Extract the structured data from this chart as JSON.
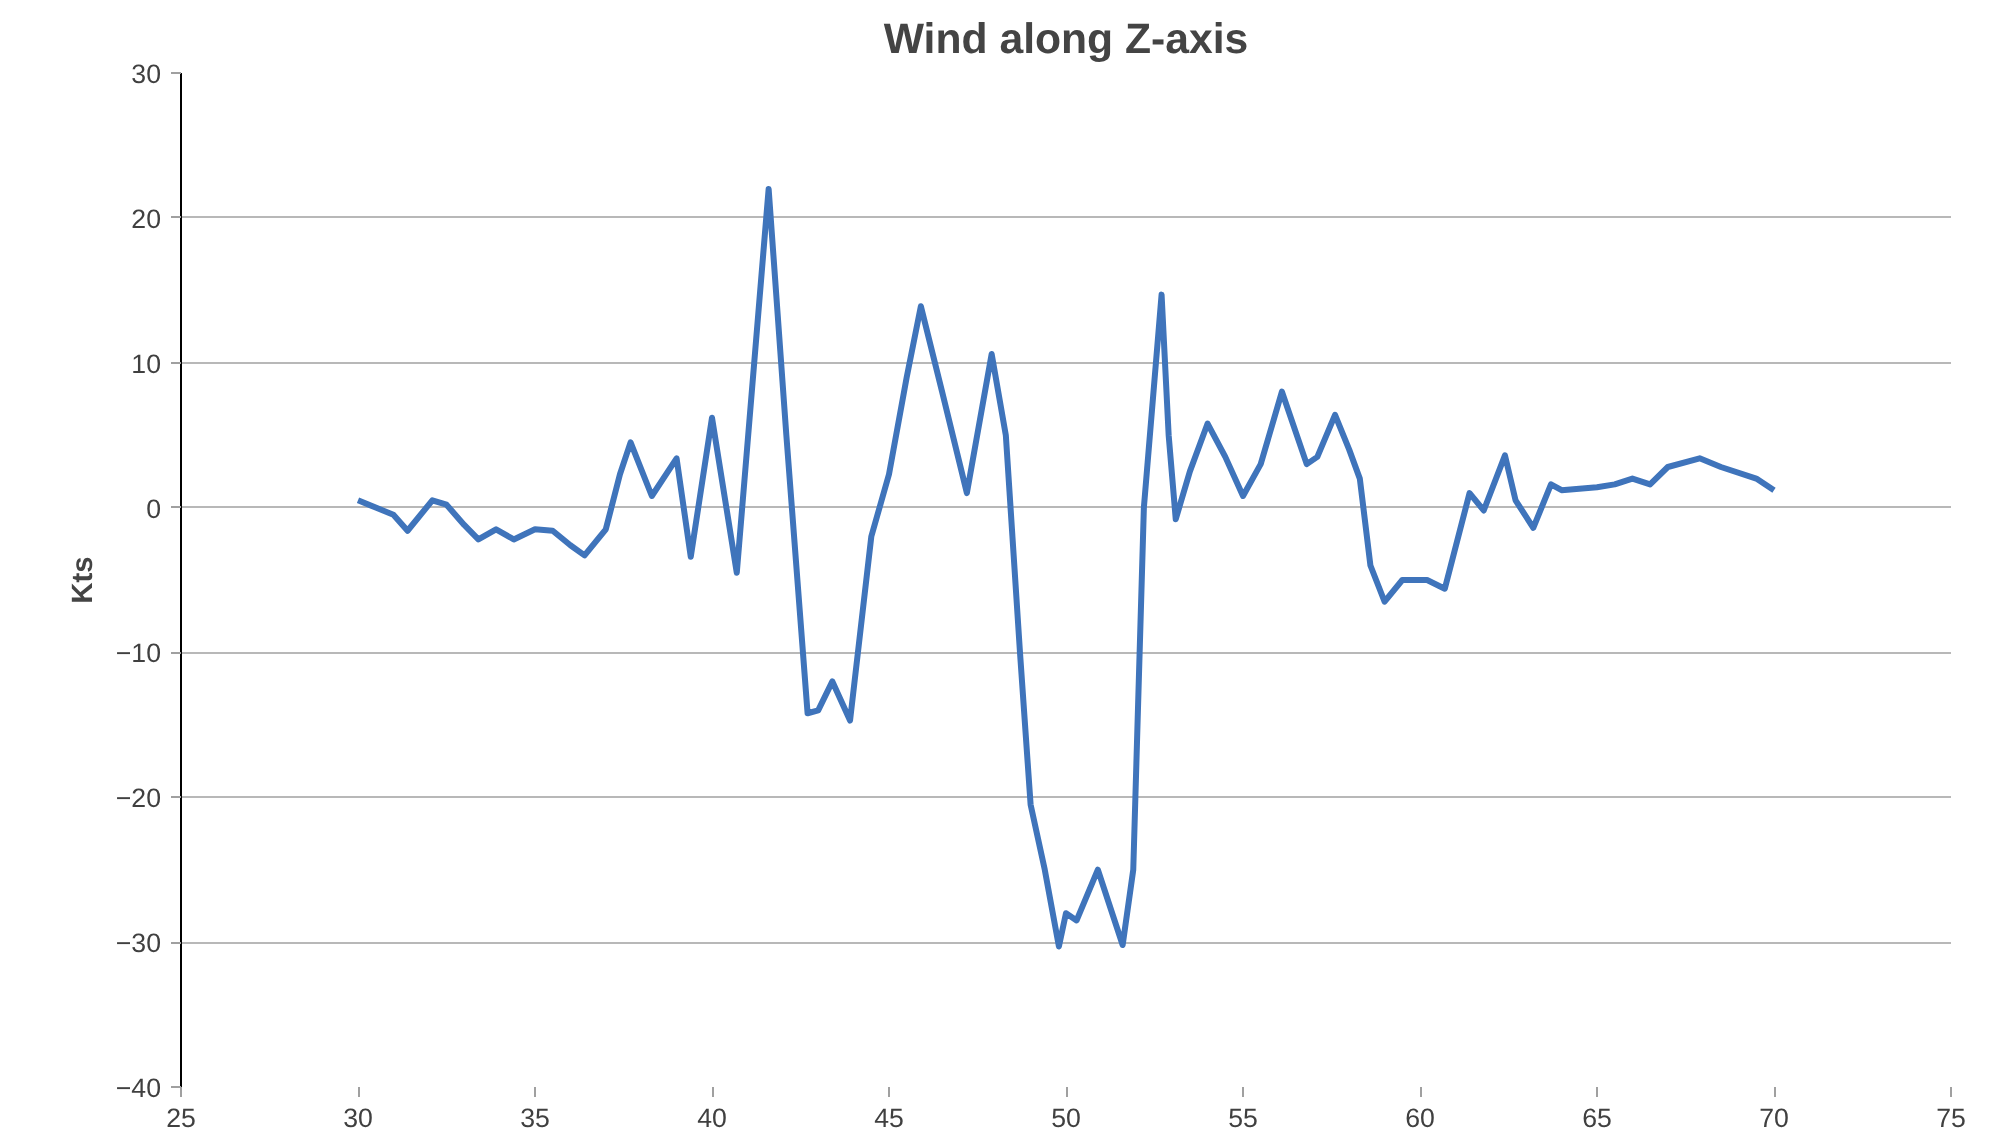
{
  "chart_data": {
    "type": "line",
    "title": "Wind along Z-axis",
    "ylabel": "Kts",
    "xlim": [
      25,
      75
    ],
    "xticks": [
      25,
      30,
      35,
      40,
      45,
      50,
      55,
      60,
      65,
      70,
      75
    ],
    "ylim": [
      -40,
      30
    ],
    "yticks": [
      -40,
      -30,
      -20,
      -10,
      0,
      10,
      20,
      30
    ],
    "grid": "y",
    "series": [
      {
        "color": "#3f74bb",
        "x": [
          30,
          30.5,
          31,
          31.4,
          32.1,
          32.5,
          33,
          33.4,
          33.9,
          34.4,
          35,
          35.5,
          36,
          36.4,
          37,
          37.4,
          37.7,
          38.3,
          39,
          39.4,
          40,
          40.7,
          41.6,
          42.1,
          42.7,
          43,
          43.4,
          43.9,
          44.5,
          45,
          45.5,
          45.9,
          46.5,
          47.2,
          47.9,
          48.3,
          48.7,
          49,
          49.4,
          49.8,
          50,
          50.3,
          50.9,
          51.6,
          51.9,
          52.2,
          52.7,
          52.9,
          53.1,
          53.5,
          54,
          54.5,
          55,
          55.5,
          56.1,
          56.8,
          57.1,
          57.6,
          58,
          58.3,
          58.6,
          59,
          59.5,
          60.2,
          60.7,
          61.4,
          61.8,
          62.4,
          62.7,
          63.2,
          63.7,
          64,
          65,
          65.5,
          66,
          66.5,
          67,
          67.9,
          68.5,
          69.5,
          70
        ],
        "values": [
          0.5,
          0,
          -0.5,
          -1.6,
          0.5,
          0.2,
          -1.2,
          -2.2,
          -1.5,
          -2.2,
          -1.5,
          -1.6,
          -2.6,
          -3.3,
          -1.5,
          2.3,
          4.5,
          0.8,
          3.4,
          -3.4,
          6.2,
          -4.5,
          22,
          5,
          -14.2,
          -14,
          -12,
          -14.7,
          -2,
          2.3,
          9,
          13.9,
          8,
          1,
          10.6,
          5,
          -10,
          -20.5,
          -25,
          -30.3,
          -28,
          -28.5,
          -25,
          -30.2,
          -25,
          0,
          14.7,
          5,
          -0.8,
          2.5,
          5.8,
          3.5,
          0.8,
          3,
          8,
          3,
          3.5,
          6.4,
          4,
          2,
          -4,
          -6.5,
          -5,
          -5,
          -5.6,
          1,
          -0.2,
          3.6,
          0.5,
          -1.4,
          1.6,
          1.2,
          1.4,
          1.6,
          2,
          1.6,
          2.8,
          3.4,
          2.8,
          2,
          1.2
        ]
      }
    ]
  }
}
